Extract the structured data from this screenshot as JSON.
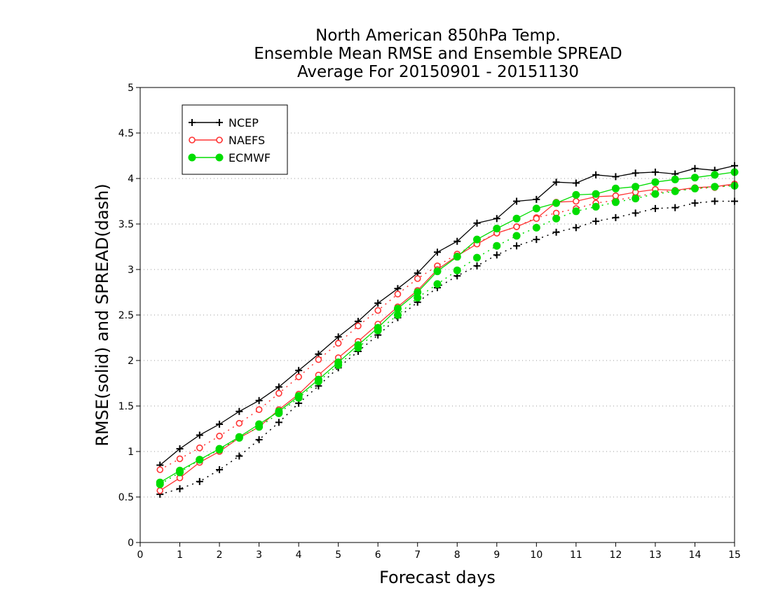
{
  "chart_data": {
    "type": "line",
    "title_lines": [
      "North American 850hPa Temp.",
      "Ensemble Mean RMSE and Ensemble SPREAD",
      "Average For 20150901 - 20151130"
    ],
    "xlabel": "Forecast days",
    "ylabel": "RMSE(solid)  and  SPREAD(dash)",
    "xlim": [
      0,
      15
    ],
    "ylim": [
      0,
      5
    ],
    "xticks": [
      "0",
      "1",
      "2",
      "3",
      "4",
      "5",
      "6",
      "7",
      "8",
      "9",
      "10",
      "11",
      "12",
      "13",
      "14",
      "15"
    ],
    "yticks": [
      "0",
      "0.5",
      "1",
      "1.5",
      "2",
      "2.5",
      "3",
      "3.5",
      "4",
      "4.5",
      "5"
    ],
    "grid": true,
    "legend_position": "top-left",
    "x": [
      0.5,
      1,
      1.5,
      2,
      2.5,
      3,
      3.5,
      4,
      4.5,
      5,
      5.5,
      6,
      6.5,
      7,
      7.5,
      8,
      8.5,
      9,
      9.5,
      10,
      10.5,
      11,
      11.5,
      12,
      12.5,
      13,
      13.5,
      14,
      14.5,
      15
    ],
    "series": [
      {
        "name": "NCEP",
        "color": "#000000",
        "marker": "plus",
        "rmse": [
          0.85,
          1.03,
          1.18,
          1.3,
          1.44,
          1.56,
          1.71,
          1.89,
          2.07,
          2.26,
          2.43,
          2.63,
          2.79,
          2.96,
          3.19,
          3.31,
          3.51,
          3.56,
          3.75,
          3.77,
          3.96,
          3.95,
          4.04,
          4.02,
          4.06,
          4.07,
          4.05,
          4.11,
          4.09,
          4.14
        ],
        "spread": [
          0.53,
          0.59,
          0.67,
          0.8,
          0.95,
          1.13,
          1.32,
          1.53,
          1.72,
          1.92,
          2.1,
          2.28,
          2.47,
          2.64,
          2.8,
          2.93,
          3.04,
          3.16,
          3.26,
          3.33,
          3.41,
          3.46,
          3.53,
          3.57,
          3.62,
          3.67,
          3.68,
          3.73,
          3.75,
          3.75
        ]
      },
      {
        "name": "NAEFS",
        "color": "#ff3333",
        "marker": "open-circle",
        "rmse": [
          0.57,
          0.71,
          0.88,
          1.0,
          1.15,
          1.27,
          1.46,
          1.63,
          1.84,
          2.03,
          2.21,
          2.4,
          2.59,
          2.77,
          3.0,
          3.15,
          3.28,
          3.4,
          3.47,
          3.56,
          3.74,
          3.75,
          3.8,
          3.81,
          3.85,
          3.88,
          3.87,
          3.9,
          3.91,
          3.94
        ],
        "spread": [
          0.8,
          0.92,
          1.04,
          1.17,
          1.31,
          1.46,
          1.64,
          1.82,
          2.01,
          2.19,
          2.38,
          2.55,
          2.73,
          2.9,
          3.04,
          3.17,
          3.29,
          3.4,
          3.47,
          3.57,
          3.62,
          3.67,
          3.73,
          3.76,
          3.8,
          3.84,
          3.87,
          3.89,
          3.9,
          3.93
        ]
      },
      {
        "name": "ECMWF",
        "color": "#00dd00",
        "marker": "filled-circle",
        "rmse": [
          0.66,
          0.79,
          0.91,
          1.03,
          1.16,
          1.3,
          1.44,
          1.61,
          1.79,
          1.98,
          2.17,
          2.36,
          2.57,
          2.75,
          2.98,
          3.14,
          3.33,
          3.45,
          3.56,
          3.67,
          3.73,
          3.82,
          3.83,
          3.89,
          3.91,
          3.96,
          3.99,
          4.01,
          4.04,
          4.07
        ],
        "spread": [
          0.64,
          0.77,
          0.91,
          1.02,
          1.15,
          1.27,
          1.42,
          1.59,
          1.77,
          1.95,
          2.14,
          2.33,
          2.5,
          2.69,
          2.84,
          2.99,
          3.13,
          3.26,
          3.37,
          3.46,
          3.56,
          3.64,
          3.69,
          3.74,
          3.78,
          3.83,
          3.86,
          3.89,
          3.91,
          3.92
        ]
      }
    ]
  }
}
